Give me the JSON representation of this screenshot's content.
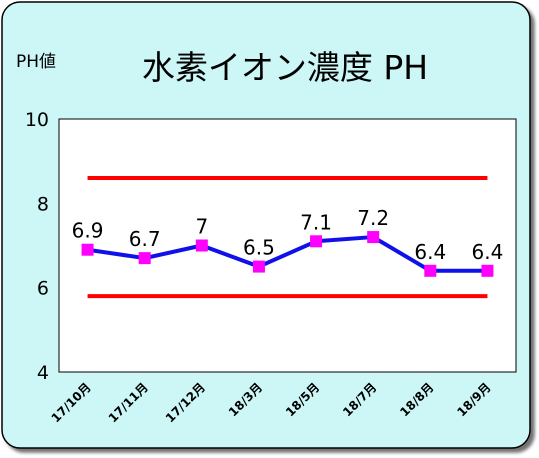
{
  "chart_data": {
    "type": "line",
    "title": "水素イオン濃度 PH",
    "ylabel": "PH値",
    "xlabel": "",
    "categories": [
      "17/10月",
      "17/11月",
      "17/12月",
      "18/3月",
      "18/5月",
      "18/7月",
      "18/8月",
      "18/9月"
    ],
    "series": [
      {
        "values": [
          6.9,
          6.7,
          7,
          6.5,
          7.1,
          7.2,
          6.4,
          6.4
        ],
        "data_labels": [
          "6.9",
          "6.7",
          "7",
          "6.5",
          "7.1",
          "7.2",
          "6.4",
          "6.4"
        ],
        "line_color": "#1010e8",
        "marker_color": "#ff00ff"
      }
    ],
    "reference_lines": [
      {
        "value": 8.6,
        "color": "#ff0000"
      },
      {
        "value": 5.8,
        "color": "#ff0000"
      }
    ],
    "ylim": [
      4,
      10
    ],
    "yticks": [
      "4",
      "6",
      "8",
      "10"
    ],
    "grid": false,
    "legend": "none"
  },
  "colors": {
    "panel_background": "#cdf7f7",
    "plot_background": "#ffffff",
    "border": "#000000"
  }
}
